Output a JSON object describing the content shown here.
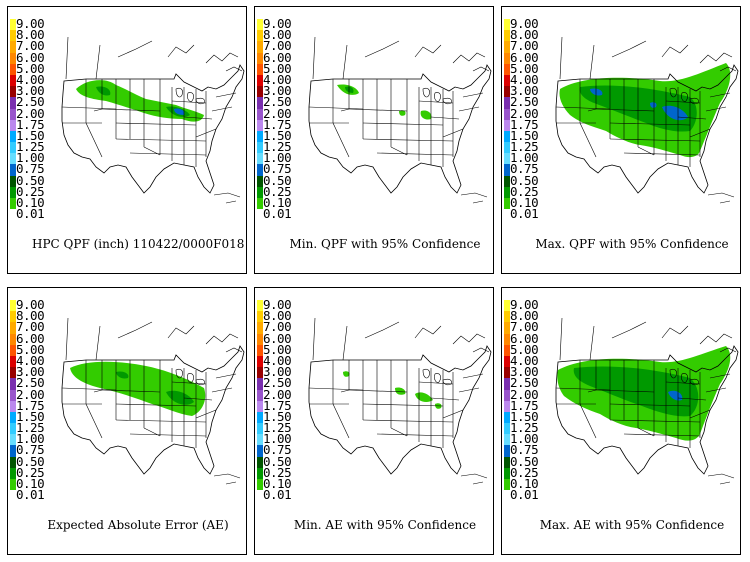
{
  "legend_levels": [
    {
      "label": "9.00",
      "color": "#ffff33"
    },
    {
      "label": "8.00",
      "color": "#ffcc00"
    },
    {
      "label": "7.00",
      "color": "#ffaa00"
    },
    {
      "label": "6.00",
      "color": "#ff8800"
    },
    {
      "label": "5.00",
      "color": "#ff5500"
    },
    {
      "label": "4.00",
      "color": "#dd0000"
    },
    {
      "label": "3.00",
      "color": "#990000"
    },
    {
      "label": "2.50",
      "color": "#7a2faf"
    },
    {
      "label": "2.00",
      "color": "#9955cc"
    },
    {
      "label": "1.75",
      "color": "#bb88ee"
    },
    {
      "label": "1.50",
      "color": "#00aaff"
    },
    {
      "label": "1.25",
      "color": "#33ccff"
    },
    {
      "label": "1.00",
      "color": "#66ddff"
    },
    {
      "label": "0.75",
      "color": "#0066cc"
    },
    {
      "label": "0.50",
      "color": "#005500"
    },
    {
      "label": "0.25",
      "color": "#009900"
    },
    {
      "label": "0.10",
      "color": "#33cc00"
    },
    {
      "label": "0.01",
      "color": "#ffffff"
    }
  ],
  "panels": [
    {
      "caption": "HPC QPF (inch) 110422/0000F018",
      "coverage": "base"
    },
    {
      "caption": "Min. QPF with 95% Confidence",
      "coverage": "min"
    },
    {
      "caption": "Max. QPF with 95% Confidence",
      "coverage": "max"
    },
    {
      "caption": "Expected Absolute Error (AE)",
      "coverage": "ae"
    },
    {
      "caption": "Min. AE with 95% Confidence",
      "coverage": "aemin"
    },
    {
      "caption": "Max. AE with 95% Confidence",
      "coverage": "aemax"
    }
  ]
}
